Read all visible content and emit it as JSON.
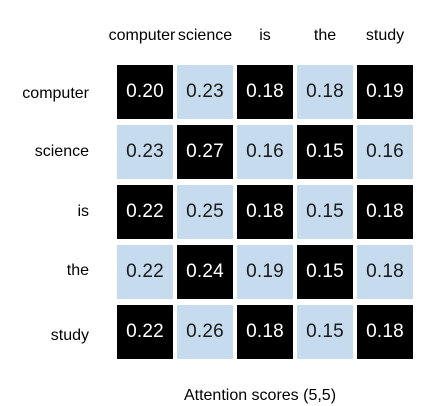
{
  "columns": [
    "computer",
    "science",
    "is",
    "the",
    "study"
  ],
  "rows": [
    "computer",
    "science",
    "is",
    "the",
    "study"
  ],
  "colors": {
    "dark": "#000000",
    "light": "#c6dcee"
  },
  "matrix": [
    [
      {
        "value": "0.20",
        "style": "dark"
      },
      {
        "value": "0.23",
        "style": "light"
      },
      {
        "value": "0.18",
        "style": "dark"
      },
      {
        "value": "0.18",
        "style": "light"
      },
      {
        "value": "0.19",
        "style": "dark"
      }
    ],
    [
      {
        "value": "0.23",
        "style": "light"
      },
      {
        "value": "0.27",
        "style": "dark"
      },
      {
        "value": "0.16",
        "style": "light"
      },
      {
        "value": "0.15",
        "style": "dark"
      },
      {
        "value": "0.16",
        "style": "light"
      }
    ],
    [
      {
        "value": "0.22",
        "style": "dark"
      },
      {
        "value": "0.25",
        "style": "light"
      },
      {
        "value": "0.18",
        "style": "dark"
      },
      {
        "value": "0.15",
        "style": "light"
      },
      {
        "value": "0.18",
        "style": "dark"
      }
    ],
    [
      {
        "value": "0.22",
        "style": "light"
      },
      {
        "value": "0.24",
        "style": "dark"
      },
      {
        "value": "0.19",
        "style": "light"
      },
      {
        "value": "0.15",
        "style": "dark"
      },
      {
        "value": "0.18",
        "style": "light"
      }
    ],
    [
      {
        "value": "0.22",
        "style": "dark"
      },
      {
        "value": "0.26",
        "style": "light"
      },
      {
        "value": "0.18",
        "style": "dark"
      },
      {
        "value": "0.15",
        "style": "light"
      },
      {
        "value": "0.18",
        "style": "dark"
      }
    ]
  ],
  "caption": "Attention scores (5,5)"
}
